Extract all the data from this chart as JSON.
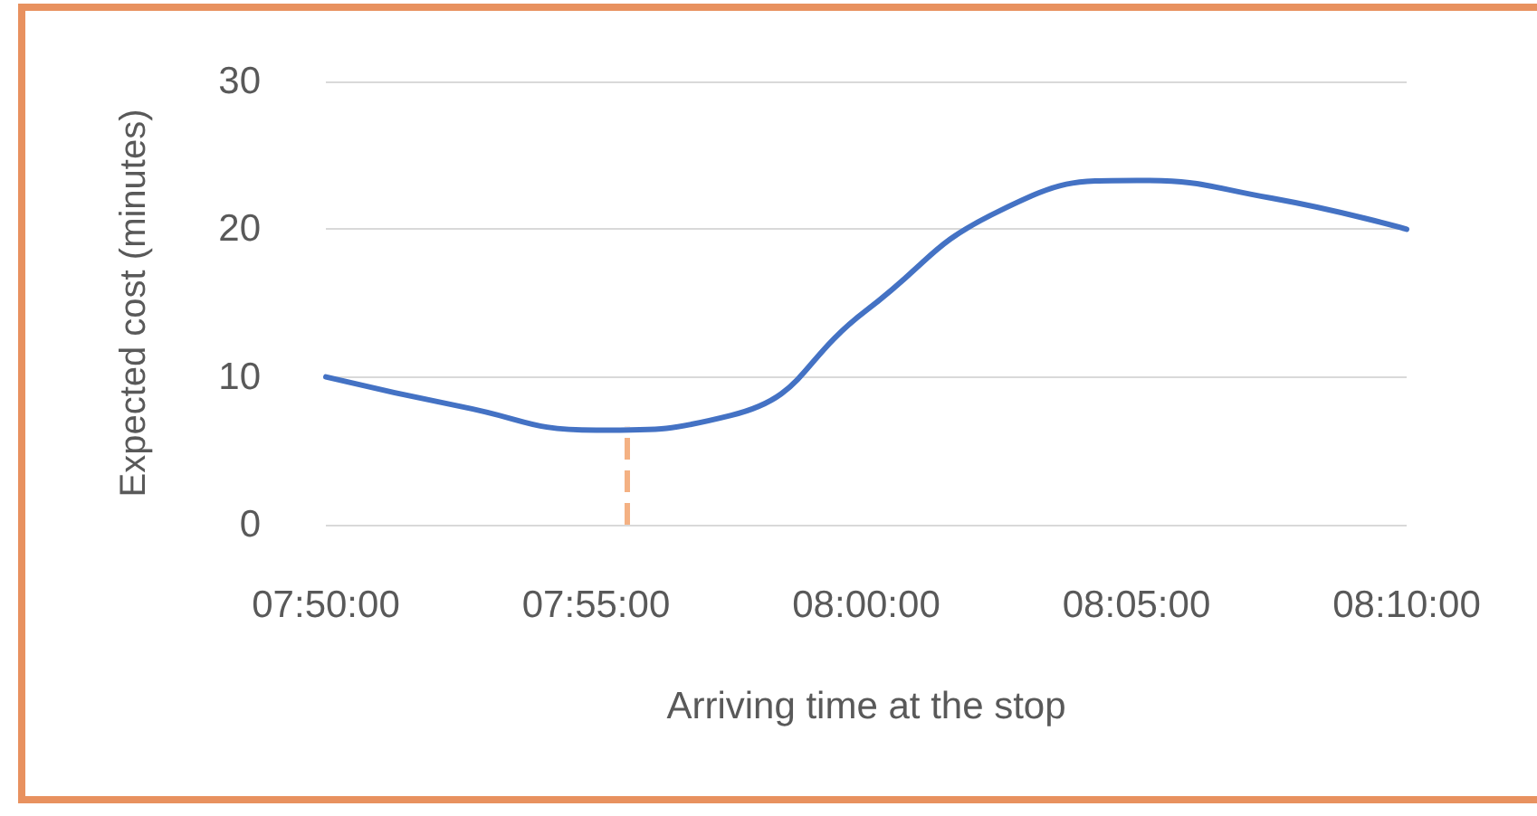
{
  "chart_data": {
    "type": "line",
    "xlabel": "Arriving time at the stop",
    "ylabel": "Expected cost (minutes)",
    "x": [
      7.833333,
      7.875,
      7.916667,
      7.958333,
      8.0,
      8.041667,
      8.083333,
      8.125,
      8.166667
    ],
    "series": [
      {
        "color": "#4472c4",
        "values": [
          10,
          8.0,
          6.4,
          7.4,
          14.5,
          21.3,
          23.3,
          22.1,
          20
        ]
      }
    ],
    "xlim": [
      7.833333,
      8.166667
    ],
    "xticks": [
      {
        "value": 7.833333,
        "label": "07:50:00"
      },
      {
        "value": 7.916667,
        "label": "07:55:00"
      },
      {
        "value": 8.0,
        "label": "08:00:00"
      },
      {
        "value": 8.083333,
        "label": "08:05:00"
      },
      {
        "value": 8.166667,
        "label": "08:10:00"
      }
    ],
    "ylim": [
      0,
      30
    ],
    "yticks": [
      0,
      10,
      20,
      30
    ],
    "grid": "y",
    "marker": "none",
    "line_style": "solid",
    "ref_lines": [
      {
        "axis": "x",
        "value": 7.9264,
        "color": "#f4b183",
        "line_style": "dashed"
      }
    ]
  }
}
